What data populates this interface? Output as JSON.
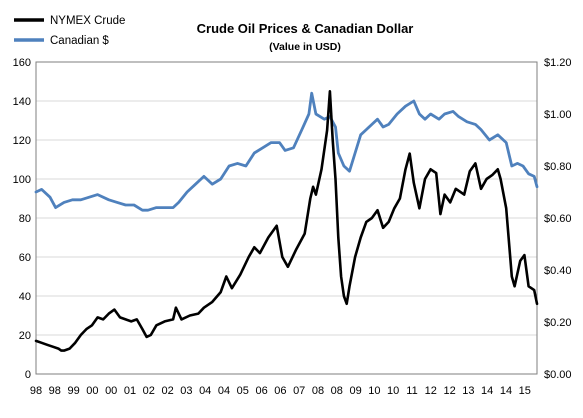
{
  "chart_data": {
    "type": "line",
    "title": "Crude Oil Prices & Canadian Dollar",
    "subtitle": "(Value in USD)",
    "legend_position": "top-left",
    "grid": {
      "horizontal": true,
      "vertical": false
    },
    "x_tick_labels": [
      "98",
      "98",
      "99",
      "00",
      "00",
      "01",
      "02",
      "02",
      "03",
      "04",
      "04",
      "05",
      "06",
      "06",
      "07",
      "08",
      "08",
      "09",
      "10",
      "10",
      "11",
      "12",
      "12",
      "13",
      "14",
      "14",
      "15"
    ],
    "x_range": [
      1998.0,
      2015.9
    ],
    "y_left": {
      "range": [
        0,
        160
      ],
      "ticks": [
        0,
        20,
        40,
        60,
        80,
        100,
        120,
        140,
        160
      ],
      "tick_labels": [
        "0",
        "20",
        "40",
        "60",
        "80",
        "100",
        "120",
        "140",
        "160"
      ]
    },
    "y_right": {
      "range": [
        0,
        1.2
      ],
      "ticks": [
        0,
        0.2,
        0.4,
        0.6,
        0.8,
        1.0,
        1.2
      ],
      "tick_labels": [
        "$0.00",
        "$0.20",
        "$0.40",
        "$0.60",
        "$0.80",
        "$1.00",
        "$1.20"
      ]
    },
    "series": [
      {
        "name": "NYMEX Crude",
        "color": "#000000",
        "axis": "left",
        "points": [
          [
            1998.0,
            17
          ],
          [
            1998.2,
            16
          ],
          [
            1998.4,
            15
          ],
          [
            1998.6,
            14
          ],
          [
            1998.8,
            13
          ],
          [
            1998.9,
            12
          ],
          [
            1999.0,
            12
          ],
          [
            1999.2,
            13
          ],
          [
            1999.4,
            16
          ],
          [
            1999.6,
            20
          ],
          [
            1999.8,
            23
          ],
          [
            2000.0,
            25
          ],
          [
            2000.2,
            29
          ],
          [
            2000.4,
            28
          ],
          [
            2000.6,
            31
          ],
          [
            2000.8,
            33
          ],
          [
            2001.0,
            29
          ],
          [
            2001.2,
            28
          ],
          [
            2001.4,
            27
          ],
          [
            2001.6,
            28
          ],
          [
            2001.8,
            23
          ],
          [
            2001.95,
            19
          ],
          [
            2002.1,
            20
          ],
          [
            2002.3,
            25
          ],
          [
            2002.6,
            27
          ],
          [
            2002.9,
            28
          ],
          [
            2003.0,
            34
          ],
          [
            2003.2,
            28
          ],
          [
            2003.5,
            30
          ],
          [
            2003.8,
            31
          ],
          [
            2004.0,
            34
          ],
          [
            2004.3,
            37
          ],
          [
            2004.6,
            42
          ],
          [
            2004.8,
            50
          ],
          [
            2005.0,
            44
          ],
          [
            2005.3,
            51
          ],
          [
            2005.6,
            60
          ],
          [
            2005.8,
            65
          ],
          [
            2006.0,
            62
          ],
          [
            2006.3,
            70
          ],
          [
            2006.6,
            76
          ],
          [
            2006.8,
            60
          ],
          [
            2007.0,
            55
          ],
          [
            2007.3,
            64
          ],
          [
            2007.6,
            72
          ],
          [
            2007.8,
            90
          ],
          [
            2007.9,
            96
          ],
          [
            2008.0,
            92
          ],
          [
            2008.2,
            105
          ],
          [
            2008.4,
            125
          ],
          [
            2008.5,
            145
          ],
          [
            2008.6,
            120
          ],
          [
            2008.7,
            100
          ],
          [
            2008.8,
            70
          ],
          [
            2008.9,
            50
          ],
          [
            2009.0,
            40
          ],
          [
            2009.1,
            36
          ],
          [
            2009.2,
            45
          ],
          [
            2009.4,
            60
          ],
          [
            2009.6,
            70
          ],
          [
            2009.8,
            78
          ],
          [
            2010.0,
            80
          ],
          [
            2010.2,
            84
          ],
          [
            2010.4,
            75
          ],
          [
            2010.6,
            78
          ],
          [
            2010.8,
            85
          ],
          [
            2011.0,
            90
          ],
          [
            2011.2,
            105
          ],
          [
            2011.35,
            113
          ],
          [
            2011.5,
            98
          ],
          [
            2011.7,
            85
          ],
          [
            2011.9,
            100
          ],
          [
            2012.1,
            105
          ],
          [
            2012.3,
            103
          ],
          [
            2012.45,
            82
          ],
          [
            2012.6,
            92
          ],
          [
            2012.8,
            88
          ],
          [
            2013.0,
            95
          ],
          [
            2013.3,
            92
          ],
          [
            2013.5,
            104
          ],
          [
            2013.7,
            108
          ],
          [
            2013.9,
            95
          ],
          [
            2014.1,
            100
          ],
          [
            2014.3,
            102
          ],
          [
            2014.5,
            105
          ],
          [
            2014.6,
            100
          ],
          [
            2014.8,
            85
          ],
          [
            2015.0,
            50
          ],
          [
            2015.1,
            45
          ],
          [
            2015.3,
            58
          ],
          [
            2015.45,
            61
          ],
          [
            2015.6,
            45
          ],
          [
            2015.8,
            43
          ],
          [
            2015.9,
            36
          ]
        ]
      },
      {
        "name": "Canadian $",
        "color": "#4f81bd",
        "axis": "right",
        "points": [
          [
            1998.0,
            0.7
          ],
          [
            1998.2,
            0.71
          ],
          [
            1998.5,
            0.68
          ],
          [
            1998.7,
            0.64
          ],
          [
            1999.0,
            0.66
          ],
          [
            1999.3,
            0.67
          ],
          [
            1999.6,
            0.67
          ],
          [
            1999.9,
            0.68
          ],
          [
            2000.2,
            0.69
          ],
          [
            2000.6,
            0.67
          ],
          [
            2000.9,
            0.66
          ],
          [
            2001.2,
            0.65
          ],
          [
            2001.5,
            0.65
          ],
          [
            2001.8,
            0.63
          ],
          [
            2002.0,
            0.63
          ],
          [
            2002.3,
            0.64
          ],
          [
            2002.6,
            0.64
          ],
          [
            2002.9,
            0.64
          ],
          [
            2003.1,
            0.66
          ],
          [
            2003.4,
            0.7
          ],
          [
            2003.7,
            0.73
          ],
          [
            2004.0,
            0.76
          ],
          [
            2004.3,
            0.73
          ],
          [
            2004.6,
            0.75
          ],
          [
            2004.9,
            0.8
          ],
          [
            2005.2,
            0.81
          ],
          [
            2005.5,
            0.8
          ],
          [
            2005.8,
            0.85
          ],
          [
            2006.1,
            0.87
          ],
          [
            2006.4,
            0.89
          ],
          [
            2006.7,
            0.89
          ],
          [
            2006.9,
            0.86
          ],
          [
            2007.2,
            0.87
          ],
          [
            2007.5,
            0.94
          ],
          [
            2007.75,
            1.0
          ],
          [
            2007.85,
            1.08
          ],
          [
            2008.0,
            1.0
          ],
          [
            2008.3,
            0.98
          ],
          [
            2008.5,
            0.99
          ],
          [
            2008.7,
            0.95
          ],
          [
            2008.8,
            0.85
          ],
          [
            2009.0,
            0.8
          ],
          [
            2009.2,
            0.78
          ],
          [
            2009.4,
            0.85
          ],
          [
            2009.6,
            0.92
          ],
          [
            2009.8,
            0.94
          ],
          [
            2010.0,
            0.96
          ],
          [
            2010.2,
            0.98
          ],
          [
            2010.4,
            0.95
          ],
          [
            2010.6,
            0.96
          ],
          [
            2010.9,
            1.0
          ],
          [
            2011.2,
            1.03
          ],
          [
            2011.5,
            1.05
          ],
          [
            2011.7,
            1.0
          ],
          [
            2011.9,
            0.98
          ],
          [
            2012.1,
            1.0
          ],
          [
            2012.4,
            0.98
          ],
          [
            2012.6,
            1.0
          ],
          [
            2012.9,
            1.01
          ],
          [
            2013.1,
            0.99
          ],
          [
            2013.4,
            0.97
          ],
          [
            2013.7,
            0.96
          ],
          [
            2013.9,
            0.94
          ],
          [
            2014.2,
            0.9
          ],
          [
            2014.5,
            0.92
          ],
          [
            2014.8,
            0.89
          ],
          [
            2015.0,
            0.8
          ],
          [
            2015.2,
            0.81
          ],
          [
            2015.4,
            0.8
          ],
          [
            2015.6,
            0.77
          ],
          [
            2015.8,
            0.76
          ],
          [
            2015.9,
            0.72
          ]
        ]
      }
    ]
  }
}
